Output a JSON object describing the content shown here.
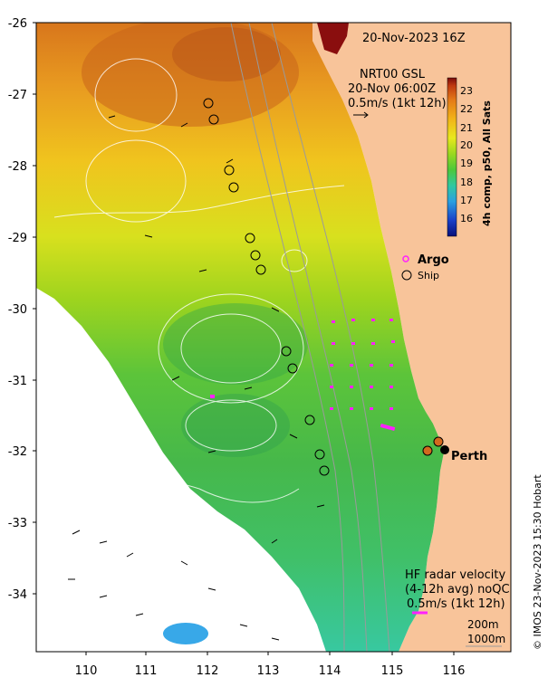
{
  "title": "20-Nov-2023 16Z",
  "gsl": {
    "line1": "NRT00 GSL",
    "line2": "20-Nov 06:00Z",
    "line3": "0.5m/s (1kt 12h)"
  },
  "colorbar": {
    "label": "4h comp, p50, All Sats",
    "ticks": [
      "23",
      "22",
      "21",
      "20",
      "19",
      "18",
      "17",
      "16"
    ],
    "stops": [
      "#08107a",
      "#1a40c8",
      "#2aa0e0",
      "#30c8a0",
      "#4cc83a",
      "#9ad820",
      "#e8e81e",
      "#f2b418",
      "#e47a18",
      "#c03a10",
      "#7a0a0a"
    ]
  },
  "legend": {
    "argo": "Argo",
    "ship": "Ship"
  },
  "city": "Perth",
  "hf": {
    "line1": "HF radar velocity",
    "line2": "(4-12h avg) noQC",
    "line3": "0.5m/s (1kt 12h)"
  },
  "depth": {
    "d200": "200m",
    "d1000": "1000m"
  },
  "credit": "© IMOS 23-Nov-2023 15:30 Hobart",
  "axes": {
    "lat_ticks": [
      "-26",
      "-27",
      "-28",
      "-29",
      "-30",
      "-31",
      "-32",
      "-33",
      "-34"
    ],
    "lon_ticks": [
      "110",
      "111",
      "112",
      "113",
      "114",
      "115",
      "116"
    ]
  },
  "colors": {
    "land": "#f8c49a",
    "argo": "#ff20ff",
    "hf_arrow": "#ff20ff"
  }
}
